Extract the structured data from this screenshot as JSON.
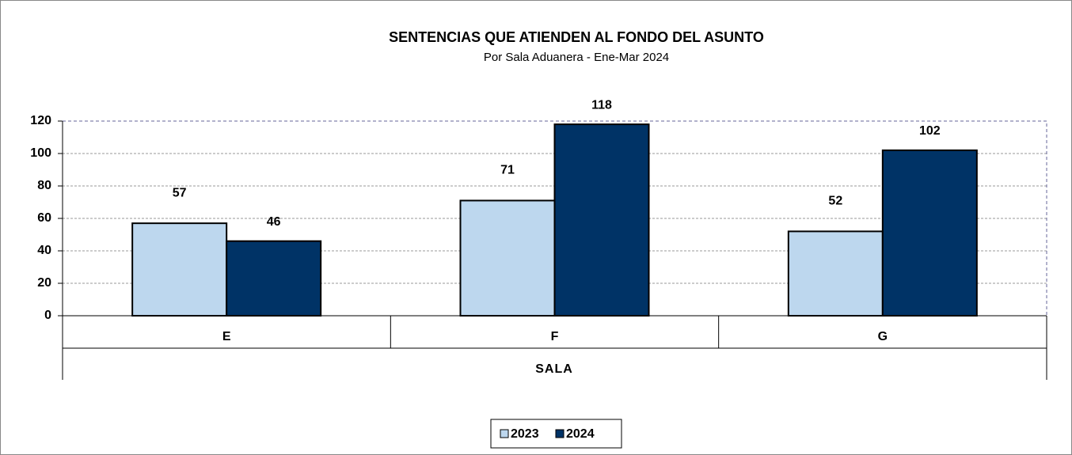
{
  "chart_data": {
    "type": "bar",
    "title": "SENTENCIAS QUE ATIENDEN AL FONDO DEL ASUNTO",
    "subtitle": "Por Sala Aduanera - Ene-Mar 2024",
    "x_label": "SALA",
    "categories": [
      "E",
      "F",
      "G"
    ],
    "series": [
      {
        "name": "2023",
        "color": "#bdd7ee",
        "values": [
          57,
          71,
          52
        ]
      },
      {
        "name": "2024",
        "color": "#003366",
        "values": [
          46,
          118,
          102
        ]
      }
    ],
    "ylim": [
      0,
      120
    ],
    "yticks": [
      0,
      20,
      40,
      60,
      80,
      100,
      120
    ],
    "grid": true,
    "legend": "bottom"
  }
}
